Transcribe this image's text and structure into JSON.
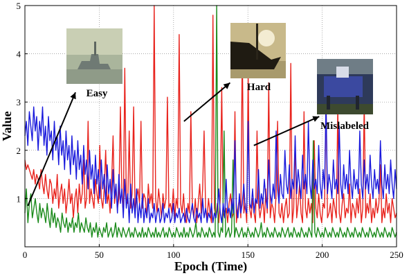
{
  "chart_data": {
    "type": "line",
    "title": "",
    "xlabel": "Epoch (Time)",
    "ylabel": "Value",
    "xlim": [
      0,
      250
    ],
    "ylim": [
      0,
      5
    ],
    "xticks": [
      "0",
      "50",
      "100",
      "150",
      "200",
      "250"
    ],
    "yticks": [
      "1",
      "2",
      "3",
      "4",
      "5"
    ],
    "grid": "dotted",
    "series": [
      {
        "color": "#e8231d",
        "values": [
          1.8,
          1.6,
          1.7,
          1.6,
          1.5,
          1.4,
          1.6,
          1.3,
          1.5,
          1.4,
          1.2,
          1.6,
          1.3,
          1.1,
          1.5,
          1.2,
          1.0,
          1.4,
          1.3,
          0.9,
          1.2,
          1.0,
          1.5,
          0.8,
          1.1,
          1.3,
          0.9,
          1.2,
          0.7,
          1.0,
          1.4,
          0.9,
          1.1,
          0.6,
          1.0,
          1.2,
          0.7,
          1.3,
          0.9,
          1.1,
          1.8,
          0.8,
          1.0,
          2.6,
          0.9,
          1.2,
          1.0,
          0.8,
          1.4,
          1.1,
          0.9,
          2.1,
          1.0,
          0.8,
          1.2,
          2.0,
          0.9,
          1.1,
          0.7,
          1.3,
          2.3,
          0.9,
          1.2,
          0.8,
          1.0,
          2.9,
          1.1,
          0.7,
          3.7,
          1.0,
          0.9,
          2.4,
          0.8,
          1.1,
          2.9,
          0.7,
          1.0,
          1.2,
          0.9,
          2.6,
          0.8,
          1.1,
          1.0,
          0.6,
          1.3,
          0.9,
          1.1,
          0.8,
          5.0,
          1.0,
          0.7,
          1.2,
          0.9,
          0.6,
          1.1,
          0.8,
          1.0,
          3.1,
          0.8,
          0.9,
          0.7,
          1.2,
          0.6,
          1.0,
          0.8,
          4.4,
          0.9,
          0.7,
          1.1,
          0.6,
          0.5,
          0.9,
          0.7,
          2.8,
          0.8,
          0.6,
          1.0,
          0.5,
          0.9,
          1.3,
          0.7,
          1.2,
          2.4,
          0.8,
          0.6,
          1.0,
          0.7,
          0.5,
          4.8,
          0.8,
          0.6,
          0.9,
          0.5,
          1.0,
          3.3,
          0.7,
          0.6,
          0.8,
          0.5,
          0.9,
          1.1,
          0.6,
          0.7,
          2.8,
          0.5,
          0.8,
          1.0,
          0.6,
          4.2,
          0.7,
          0.9,
          0.5,
          3.6,
          0.8,
          0.6,
          1.0,
          0.7,
          0.5,
          2.4,
          0.9,
          0.6,
          0.8,
          1.0,
          0.5,
          1.2,
          0.7,
          3.4,
          0.6,
          0.9,
          0.8,
          0.5,
          1.1,
          2.6,
          0.7,
          0.6,
          0.9,
          0.5,
          0.8,
          1.0,
          0.6,
          0.7,
          3.8,
          0.5,
          0.8,
          2.2,
          0.6,
          0.9,
          1.3,
          0.7,
          0.5,
          2.8,
          0.8,
          0.6,
          1.0,
          0.7,
          0.9,
          0.5,
          2.2,
          0.8,
          0.6,
          1.1,
          0.7,
          0.5,
          0.9,
          0.8,
          3.1,
          0.6,
          0.7,
          0.9,
          0.5,
          1.0,
          0.8,
          0.6,
          2.9,
          0.7,
          0.5,
          0.9,
          1.1,
          0.6,
          0.8,
          0.7,
          1.3,
          0.5,
          0.9,
          0.8,
          0.6,
          1.0,
          0.7,
          1.2,
          0.5,
          0.8,
          3.0,
          0.6,
          0.9,
          0.7,
          1.1,
          0.5,
          0.8,
          0.6,
          1.0,
          0.7,
          0.9,
          1.7,
          0.5,
          0.8,
          0.6,
          1.1,
          0.7,
          0.9,
          0.5,
          1.0,
          0.8,
          0.6,
          0.7
        ]
      },
      {
        "color": "#1a8a1a",
        "values": [
          0.7,
          1.2,
          0.5,
          0.9,
          1.1,
          0.6,
          0.8,
          1.0,
          0.7,
          0.5,
          0.9,
          0.6,
          0.8,
          0.7,
          0.5,
          0.9,
          0.6,
          0.4,
          0.8,
          0.5,
          0.7,
          0.4,
          0.6,
          0.5,
          0.3,
          0.7,
          0.5,
          0.4,
          0.6,
          0.3,
          0.5,
          0.4,
          0.6,
          0.3,
          0.5,
          0.4,
          0.7,
          0.3,
          0.5,
          0.4,
          0.3,
          0.6,
          0.4,
          0.3,
          0.5,
          0.2,
          0.4,
          0.3,
          0.5,
          0.2,
          0.4,
          0.3,
          0.2,
          0.4,
          0.3,
          0.5,
          0.2,
          0.3,
          0.4,
          0.2,
          0.3,
          0.5,
          0.2,
          0.4,
          0.3,
          0.2,
          0.4,
          0.3,
          0.2,
          0.3,
          0.4,
          0.2,
          0.3,
          0.2,
          0.4,
          0.3,
          0.2,
          0.3,
          0.2,
          0.4,
          0.2,
          0.3,
          0.2,
          0.4,
          0.3,
          0.2,
          0.3,
          0.2,
          0.4,
          0.2,
          0.3,
          0.2,
          0.3,
          0.4,
          0.2,
          0.3,
          0.2,
          0.4,
          0.3,
          0.2,
          0.3,
          0.2,
          0.4,
          0.3,
          0.2,
          0.3,
          0.2,
          0.4,
          0.2,
          0.3,
          0.2,
          0.4,
          0.3,
          0.2,
          0.3,
          0.5,
          0.2,
          0.3,
          0.2,
          0.4,
          0.3,
          0.2,
          0.3,
          0.2,
          0.4,
          0.3,
          0.2,
          0.3,
          0.2,
          5.0,
          0.3,
          0.2,
          0.4,
          0.3,
          2.4,
          0.2,
          0.3,
          0.4,
          0.2,
          0.3,
          1.8,
          0.2,
          0.4,
          0.3,
          0.2,
          0.3,
          0.4,
          0.2,
          0.3,
          0.2,
          0.4,
          0.3,
          0.2,
          0.3,
          0.2,
          0.4,
          0.3,
          0.2,
          0.3,
          0.5,
          0.2,
          0.3,
          0.2,
          0.4,
          0.3,
          0.2,
          0.3,
          0.2,
          0.4,
          0.3,
          0.2,
          0.3,
          0.2,
          0.4,
          0.3,
          0.2,
          0.3,
          0.4,
          0.2,
          0.3,
          0.2,
          0.4,
          0.3,
          0.2,
          0.3,
          0.2,
          0.4,
          0.3,
          0.2,
          0.3,
          0.2,
          0.4,
          0.3,
          0.2,
          2.2,
          0.3,
          0.2,
          0.4,
          0.3,
          0.2,
          0.3,
          0.2,
          0.4,
          0.3,
          0.2,
          0.3,
          0.2,
          0.4,
          0.3,
          0.2,
          0.3,
          0.2,
          0.4,
          0.3,
          0.2,
          0.3,
          0.2,
          0.4,
          0.3,
          0.2,
          0.3,
          0.2,
          0.4,
          0.3,
          0.2,
          0.3,
          0.2,
          0.4,
          0.3,
          0.2,
          0.3,
          0.2,
          0.4,
          0.3,
          0.2,
          0.3,
          0.2,
          0.4,
          0.3,
          0.2,
          0.3,
          0.2,
          0.4,
          0.3,
          0.2,
          0.3,
          0.2,
          0.4,
          0.3,
          0.2,
          0.3
        ]
      },
      {
        "color": "#1a1adc",
        "values": [
          2.3,
          2.6,
          2.1,
          2.8,
          2.5,
          2.2,
          2.9,
          2.4,
          2.7,
          2.0,
          2.6,
          2.3,
          2.9,
          2.1,
          2.5,
          1.9,
          2.7,
          2.2,
          2.4,
          1.8,
          2.6,
          2.0,
          2.3,
          1.7,
          2.5,
          1.9,
          2.2,
          1.6,
          2.4,
          1.8,
          2.1,
          1.5,
          2.3,
          1.7,
          2.0,
          1.4,
          2.2,
          1.6,
          1.9,
          1.3,
          2.1,
          1.5,
          1.8,
          1.2,
          2.0,
          1.4,
          1.7,
          1.1,
          1.9,
          1.3,
          1.6,
          1.0,
          1.8,
          1.2,
          1.5,
          0.9,
          1.7,
          1.1,
          1.4,
          0.8,
          1.6,
          1.0,
          1.3,
          0.7,
          1.5,
          0.9,
          1.2,
          0.6,
          1.4,
          0.8,
          1.1,
          0.5,
          1.3,
          0.7,
          1.0,
          0.6,
          1.2,
          0.5,
          0.9,
          0.6,
          1.1,
          0.5,
          0.8,
          0.6,
          1.0,
          0.5,
          0.7,
          0.6,
          0.9,
          0.5,
          0.7,
          0.8,
          0.5,
          0.6,
          0.9,
          0.5,
          0.7,
          0.6,
          0.8,
          0.5,
          0.6,
          0.9,
          0.5,
          0.7,
          0.6,
          0.8,
          0.5,
          0.6,
          0.7,
          0.5,
          0.8,
          0.6,
          0.5,
          0.7,
          0.9,
          0.6,
          0.5,
          0.8,
          0.6,
          0.7,
          0.5,
          1.0,
          0.6,
          0.8,
          0.5,
          0.7,
          0.6,
          0.9,
          0.5,
          0.7,
          0.6,
          0.8,
          1.2,
          0.7,
          0.5,
          0.9,
          0.6,
          1.4,
          0.7,
          0.8,
          0.6,
          1.0,
          0.7,
          2.2,
          0.8,
          0.6,
          1.1,
          0.7,
          0.9,
          1.3,
          0.8,
          0.7,
          2.6,
          0.9,
          0.8,
          1.2,
          0.7,
          1.0,
          0.9,
          1.6,
          0.8,
          1.1,
          0.9,
          1.4,
          1.0,
          0.8,
          1.8,
          1.1,
          0.9,
          1.3,
          1.0,
          2.4,
          1.2,
          0.9,
          1.5,
          1.1,
          1.0,
          2.0,
          1.3,
          1.1,
          1.7,
          1.0,
          1.4,
          1.2,
          2.3,
          1.1,
          1.6,
          1.3,
          1.0,
          1.9,
          1.2,
          1.5,
          1.1,
          2.6,
          1.3,
          1.0,
          1.8,
          1.2,
          1.4,
          1.1,
          2.1,
          1.3,
          1.0,
          1.6,
          1.2,
          3.0,
          1.1,
          1.5,
          1.3,
          1.0,
          1.8,
          1.2,
          1.4,
          1.1,
          2.5,
          1.3,
          1.0,
          1.7,
          1.2,
          1.5,
          1.1,
          2.0,
          1.3,
          1.0,
          1.6,
          1.2,
          1.4,
          1.1,
          2.4,
          1.3,
          1.0,
          1.8,
          1.2,
          1.5,
          1.1,
          1.9,
          1.3,
          1.0,
          1.6,
          1.2,
          1.4,
          1.1,
          2.2,
          1.3,
          1.0,
          1.7,
          1.2,
          1.5,
          1.1,
          1.8,
          1.3,
          1.0,
          1.6,
          1.2
        ]
      }
    ],
    "annotations": [
      {
        "label": "Easy",
        "arrow_from": [
          2,
          0.85
        ],
        "arrow_to": [
          34,
          3.2
        ]
      },
      {
        "label": "Hard",
        "arrow_from": [
          107,
          2.6
        ],
        "arrow_to": [
          138,
          3.4
        ]
      },
      {
        "label": "Mislabeled",
        "arrow_from": [
          154,
          2.1
        ],
        "arrow_to": [
          198,
          2.7
        ]
      }
    ]
  }
}
